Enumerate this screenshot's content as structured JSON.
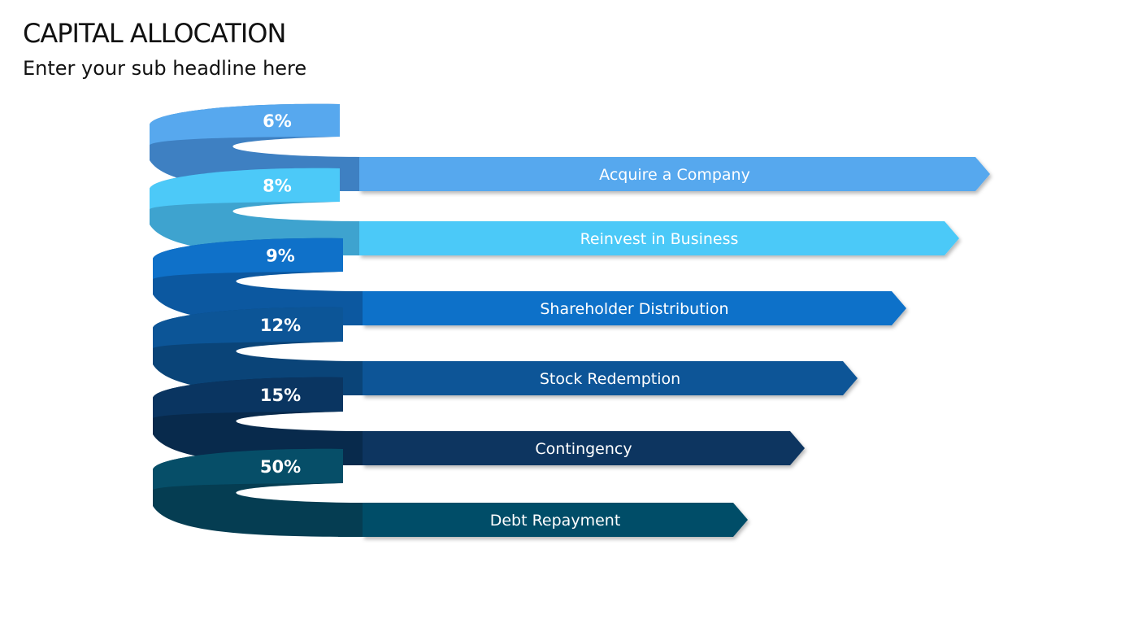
{
  "slide": {
    "title": "CAPITAL ALLOCATION",
    "subtitle": "Enter your sub headline here"
  },
  "ribbon": {
    "items": [
      {
        "percent": "6%",
        "label": "Acquire a Company",
        "color": "#57A8EE",
        "shade": "#3E80C2"
      },
      {
        "percent": "8%",
        "label": "Reinvest in Business",
        "color": "#4CC9F8",
        "shade": "#3EA3CF"
      },
      {
        "percent": "9%",
        "label": "Shareholder Distribution",
        "color": "#0F71C9",
        "shade": "#0C58A0"
      },
      {
        "percent": "12%",
        "label": "Stock Redemption",
        "color": "#0C5597",
        "shade": "#0A4478"
      },
      {
        "percent": "15%",
        "label": "Contingency",
        "color": "#0A3561",
        "shade": "#082A4C"
      },
      {
        "percent": "50%",
        "label": "Debt Repayment",
        "color": "#064E68",
        "shade": "#053D52"
      }
    ]
  }
}
